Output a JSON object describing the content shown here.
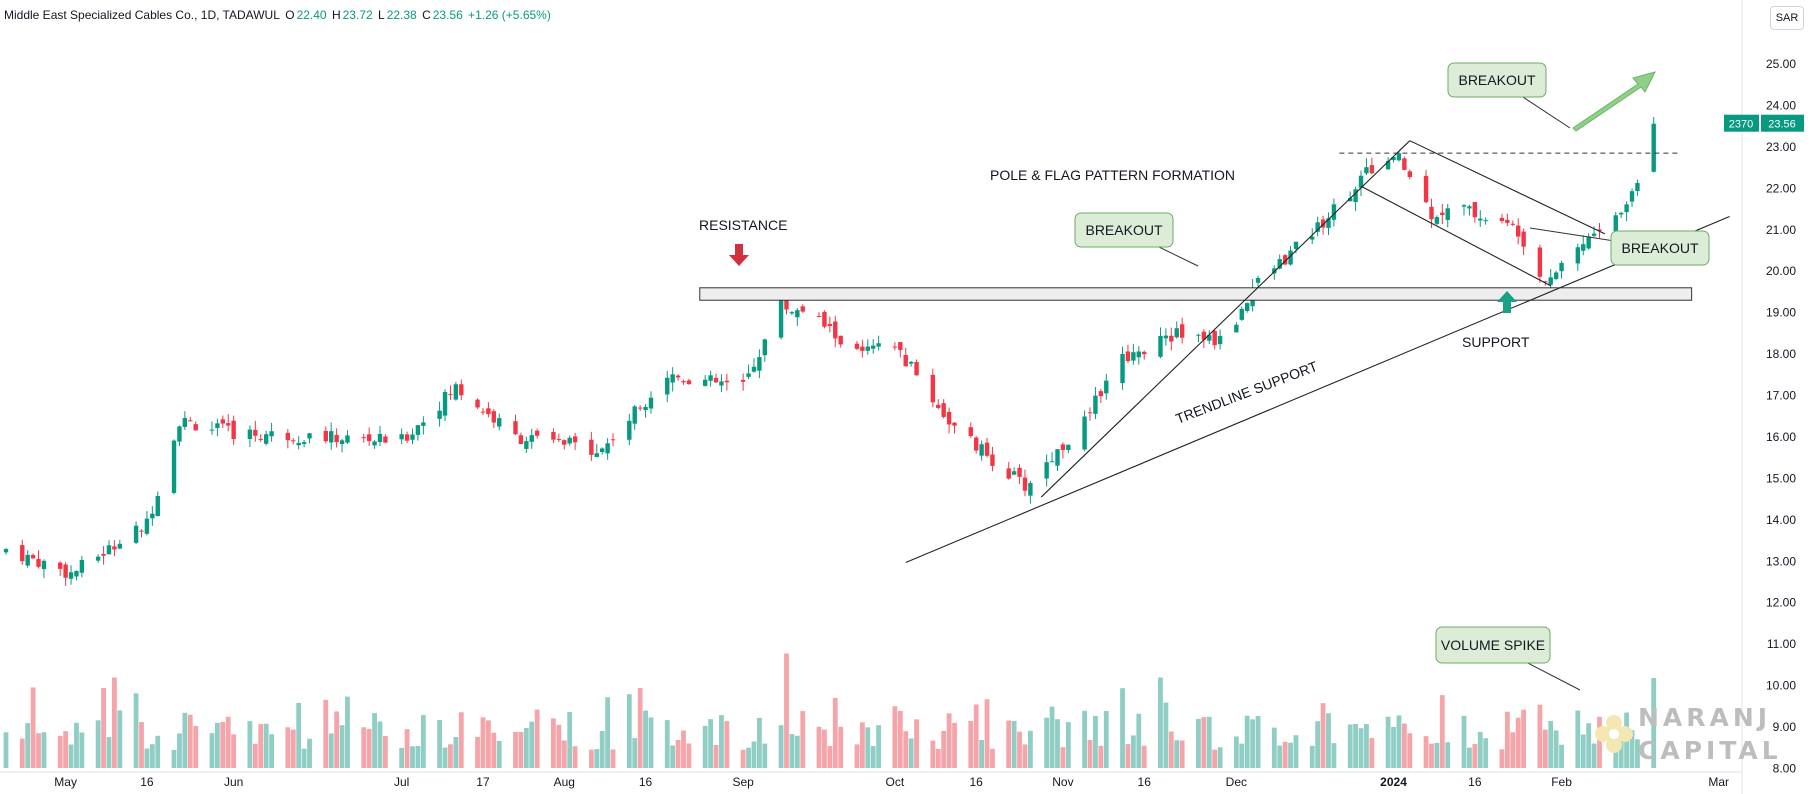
{
  "header": {
    "symbol": "Middle East Specialized Cables Co., 1D, TADAWUL",
    "o_label": "O",
    "o_value": "22.40",
    "h_label": "H",
    "h_value": "23.72",
    "l_label": "L",
    "l_value": "22.38",
    "c_label": "C",
    "c_value": "23.56",
    "change": "+1.26 (+5.65%)"
  },
  "currency": "SAR",
  "colors": {
    "up": "#089981",
    "down": "#f23645",
    "vol_up": "#8fcdc5",
    "vol_down": "#f5a4a9",
    "annotation_fill": "#dcedd7",
    "annotation_border": "#6fa967"
  },
  "chart_data": {
    "type": "candlestick",
    "interval": "1D",
    "y_axis": {
      "min": 8,
      "max": 25,
      "ticks": [
        "8.00",
        "9.00",
        "10.00",
        "11.00",
        "12.00",
        "13.00",
        "14.00",
        "15.00",
        "16.00",
        "17.00",
        "18.00",
        "19.00",
        "20.00",
        "21.00",
        "22.00",
        "23.00",
        "24.00",
        "25.00"
      ]
    },
    "x_ticks": [
      {
        "label": "May",
        "date": "2023-05-01"
      },
      {
        "label": "16",
        "date": "2023-05-16"
      },
      {
        "label": "Jun",
        "date": "2023-06-01"
      },
      {
        "label": "Jul",
        "date": "2023-07-02"
      },
      {
        "label": "17",
        "date": "2023-07-17"
      },
      {
        "label": "Aug",
        "date": "2023-08-01"
      },
      {
        "label": "16",
        "date": "2023-08-16"
      },
      {
        "label": "Sep",
        "date": "2023-09-03"
      },
      {
        "label": "Oct",
        "date": "2023-10-01"
      },
      {
        "label": "16",
        "date": "2023-10-16"
      },
      {
        "label": "Nov",
        "date": "2023-11-01"
      },
      {
        "label": "16",
        "date": "2023-11-16"
      },
      {
        "label": "Dec",
        "date": "2023-12-03"
      },
      {
        "label": "2024",
        "date": "2024-01-01"
      },
      {
        "label": "16",
        "date": "2024-01-16"
      },
      {
        "label": "Feb",
        "date": "2024-02-01"
      },
      {
        "label": "Mar",
        "date": "2024-03-01"
      }
    ],
    "x_range": [
      "2023-04-20",
      "2024-03-04"
    ],
    "last_price": "23.56",
    "last_volume": "2370",
    "key_points": [
      {
        "date": "2023-04-20",
        "close": 13.3
      },
      {
        "date": "2023-05-02",
        "close": 12.7
      },
      {
        "date": "2023-05-16",
        "close": 13.9
      },
      {
        "date": "2023-05-22",
        "close": 16.4
      },
      {
        "date": "2023-06-01",
        "close": 16.1
      },
      {
        "date": "2023-07-02",
        "close": 15.9
      },
      {
        "date": "2023-07-12",
        "close": 17.2
      },
      {
        "date": "2023-07-23",
        "close": 16.0
      },
      {
        "date": "2023-08-08",
        "close": 15.7
      },
      {
        "date": "2023-08-20",
        "close": 17.5
      },
      {
        "date": "2023-09-03",
        "close": 17.2
      },
      {
        "date": "2023-09-10",
        "close": 19.2
      },
      {
        "date": "2023-09-17",
        "close": 18.8
      },
      {
        "date": "2023-09-24",
        "close": 18.0
      },
      {
        "date": "2023-10-01",
        "close": 18.2
      },
      {
        "date": "2023-10-12",
        "close": 16.2
      },
      {
        "date": "2023-10-25",
        "close": 14.8
      },
      {
        "date": "2023-11-06",
        "close": 16.5
      },
      {
        "date": "2023-11-10",
        "close": 17.8
      },
      {
        "date": "2023-11-22",
        "close": 18.5
      },
      {
        "date": "2023-12-01",
        "close": 18.3
      },
      {
        "date": "2023-12-06",
        "close": 19.6
      },
      {
        "date": "2023-12-16",
        "close": 20.8
      },
      {
        "date": "2023-12-28",
        "close": 22.5
      },
      {
        "date": "2024-01-02",
        "close": 22.7
      },
      {
        "date": "2024-01-08",
        "close": 21.4
      },
      {
        "date": "2024-01-14",
        "close": 21.5
      },
      {
        "date": "2024-01-24",
        "close": 21.0
      },
      {
        "date": "2024-01-29",
        "close": 19.8
      },
      {
        "date": "2024-02-04",
        "close": 20.6
      },
      {
        "date": "2024-02-12",
        "close": 21.4
      },
      {
        "date": "2024-02-16",
        "close": 22.4
      },
      {
        "date": "2024-02-18",
        "close": 23.56
      }
    ],
    "volume_spike_dates": [
      "2023-05-05",
      "2023-05-10",
      "2023-05-20",
      "2023-05-26",
      "2023-09-11",
      "2023-11-19",
      "2024-01-05",
      "2024-02-18"
    ],
    "annotations": {
      "resistance": "RESISTANCE",
      "breakout_1": "BREAKOUT",
      "pole_flag": "POLE & FLAG PATTERN FORMATION",
      "breakout_2": "BREAKOUT",
      "breakout_3": "BREAKOUT",
      "support": "SUPPORT",
      "trendline": "TRENDLINE SUPPORT",
      "volume_spike": "VOLUME SPIKE"
    },
    "zones": {
      "resistance_support_band": [
        19.3,
        19.6
      ],
      "breakout_level": 22.85
    },
    "trendline": {
      "start": {
        "date": "2023-10-03",
        "price": 12.97
      },
      "end": {
        "date": "2024-03-03",
        "price": 21.32
      }
    },
    "pole": {
      "start": {
        "date": "2023-10-28",
        "price": 14.55
      },
      "end": {
        "date": "2024-01-04",
        "price": 23.15
      }
    },
    "flag_upper": {
      "start": {
        "date": "2024-01-04",
        "price": 23.15
      },
      "end": {
        "date": "2024-02-09",
        "price": 20.9
      }
    },
    "flag_lower": {
      "start": {
        "date": "2023-12-26",
        "price": 22.05
      },
      "end": {
        "date": "2024-01-30",
        "price": 19.65
      }
    }
  },
  "watermark": {
    "line1": "NARANJ",
    "line2": "CAPITAL"
  }
}
